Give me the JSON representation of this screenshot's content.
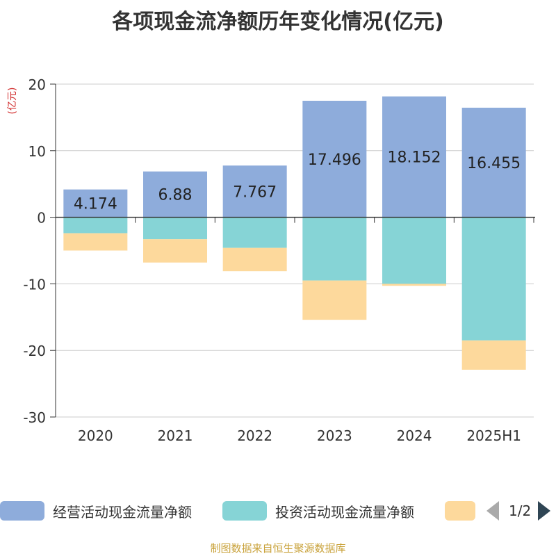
{
  "title": "各项现金流净额历年变化情况(亿元)",
  "source": "制图数据来自恒生聚源数据库",
  "legend": {
    "items": [
      {
        "label": "经营活动现金流量净额",
        "color": "#8eacdb"
      },
      {
        "label": "投资活动现金流量净额",
        "color": "#86d4d6"
      },
      {
        "label": "",
        "color": "#fdd99c"
      }
    ],
    "page_text": "1/2"
  },
  "chart_data": {
    "type": "bar",
    "stacked": true,
    "title": "各项现金流净额历年变化情况(亿元)",
    "ylabel": "(亿元)",
    "ylim": [
      -30,
      20
    ],
    "yticks": [
      20,
      10,
      0,
      -10,
      -20,
      -30
    ],
    "grid": true,
    "legend_position": "bottom",
    "categories": [
      "2020",
      "2021",
      "2022",
      "2023",
      "2024",
      "2025H1"
    ],
    "series": [
      {
        "name": "经营活动现金流量净额",
        "color": "#8eacdb",
        "values": [
          4.174,
          6.88,
          7.767,
          17.496,
          18.152,
          16.455
        ],
        "labels": [
          "4.174",
          "6.88",
          "7.767",
          "17.496",
          "18.152",
          "16.455"
        ]
      },
      {
        "name": "投资活动现金流量净额",
        "color": "#86d4d6",
        "values": [
          -2.4,
          -3.3,
          -4.6,
          -9.5,
          -10.0,
          -18.5
        ]
      },
      {
        "color": "#fdd99c",
        "values": [
          -2.6,
          -3.5,
          -3.5,
          -5.9,
          -0.3,
          -4.4
        ]
      }
    ]
  }
}
